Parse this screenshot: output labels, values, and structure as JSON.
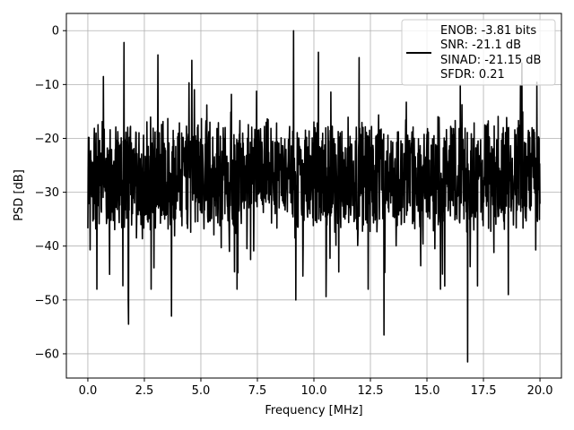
{
  "chart_data": {
    "type": "line",
    "xlabel": "Frequency [MHz]",
    "ylabel": "PSD [dB]",
    "xlim": [
      -0.95,
      20.95
    ],
    "ylim": [
      -64.5,
      3.2
    ],
    "xticks": [
      0.0,
      2.5,
      5.0,
      7.5,
      10.0,
      12.5,
      15.0,
      17.5,
      20.0
    ],
    "xtick_labels": [
      "0.0",
      "2.5",
      "5.0",
      "7.5",
      "10.0",
      "12.5",
      "15.0",
      "17.5",
      "20.0"
    ],
    "yticks": [
      0,
      -10,
      -20,
      -30,
      -40,
      -50,
      -60
    ],
    "ytick_labels": [
      "0",
      "−10",
      "−20",
      "−30",
      "−40",
      "−50",
      "−60"
    ],
    "grid": true,
    "legend_position": "top-right",
    "series": [
      {
        "color": "#000000",
        "x_range": [
          0.0,
          20.0
        ],
        "baseline_db": -27,
        "noise_spread_db": 9,
        "peaks": [
          {
            "x": 1.6,
            "y": -2.2
          },
          {
            "x": 3.1,
            "y": -4.5
          },
          {
            "x": 4.6,
            "y": -5.5
          },
          {
            "x": 9.1,
            "y": 0.0
          },
          {
            "x": 10.2,
            "y": -4.0
          },
          {
            "x": 12.0,
            "y": -5.0
          },
          {
            "x": 19.2,
            "y": -6.0
          }
        ],
        "dips": [
          {
            "x": 0.4,
            "y": -48.0
          },
          {
            "x": 1.8,
            "y": -54.5
          },
          {
            "x": 2.8,
            "y": -48.0
          },
          {
            "x": 3.7,
            "y": -53.0
          },
          {
            "x": 6.6,
            "y": -48.0
          },
          {
            "x": 9.2,
            "y": -50.0
          },
          {
            "x": 12.4,
            "y": -48.0
          },
          {
            "x": 13.1,
            "y": -56.5
          },
          {
            "x": 15.6,
            "y": -48.0
          },
          {
            "x": 16.8,
            "y": -61.5
          },
          {
            "x": 18.6,
            "y": -49.0
          }
        ]
      }
    ],
    "legend_lines": [
      "ENOB: -3.81 bits",
      "SNR: -21.1 dB",
      "SINAD: -21.15 dB",
      "SFDR: 0.21"
    ]
  }
}
